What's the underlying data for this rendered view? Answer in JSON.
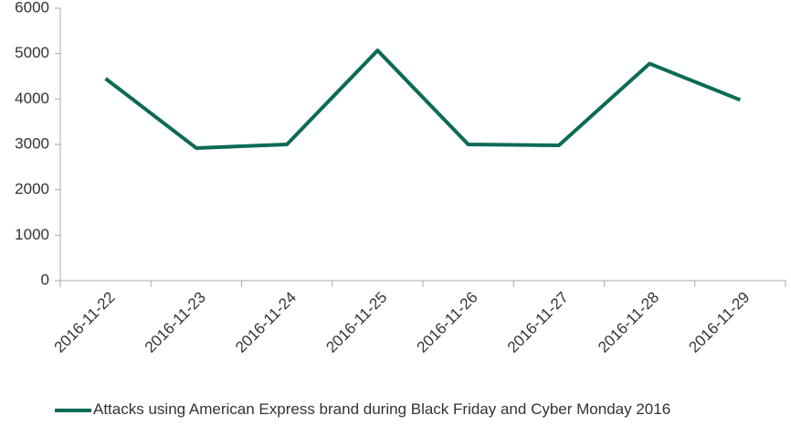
{
  "chart_data": {
    "type": "line",
    "categories": [
      "2016-11-22",
      "2016-11-23",
      "2016-11-24",
      "2016-11-25",
      "2016-11-26",
      "2016-11-27",
      "2016-11-28",
      "2016-11-29"
    ],
    "series": [
      {
        "name": "Attacks using American Express brand during Black Friday and Cyber Monday 2016",
        "color": "#0b6b56",
        "values": [
          4450,
          2920,
          3000,
          5070,
          3000,
          2980,
          4780,
          3980
        ]
      }
    ],
    "ylim": [
      0,
      6000
    ],
    "yticks": [
      0,
      1000,
      2000,
      3000,
      4000,
      5000,
      6000
    ],
    "grid": false,
    "legend": "bottom"
  }
}
